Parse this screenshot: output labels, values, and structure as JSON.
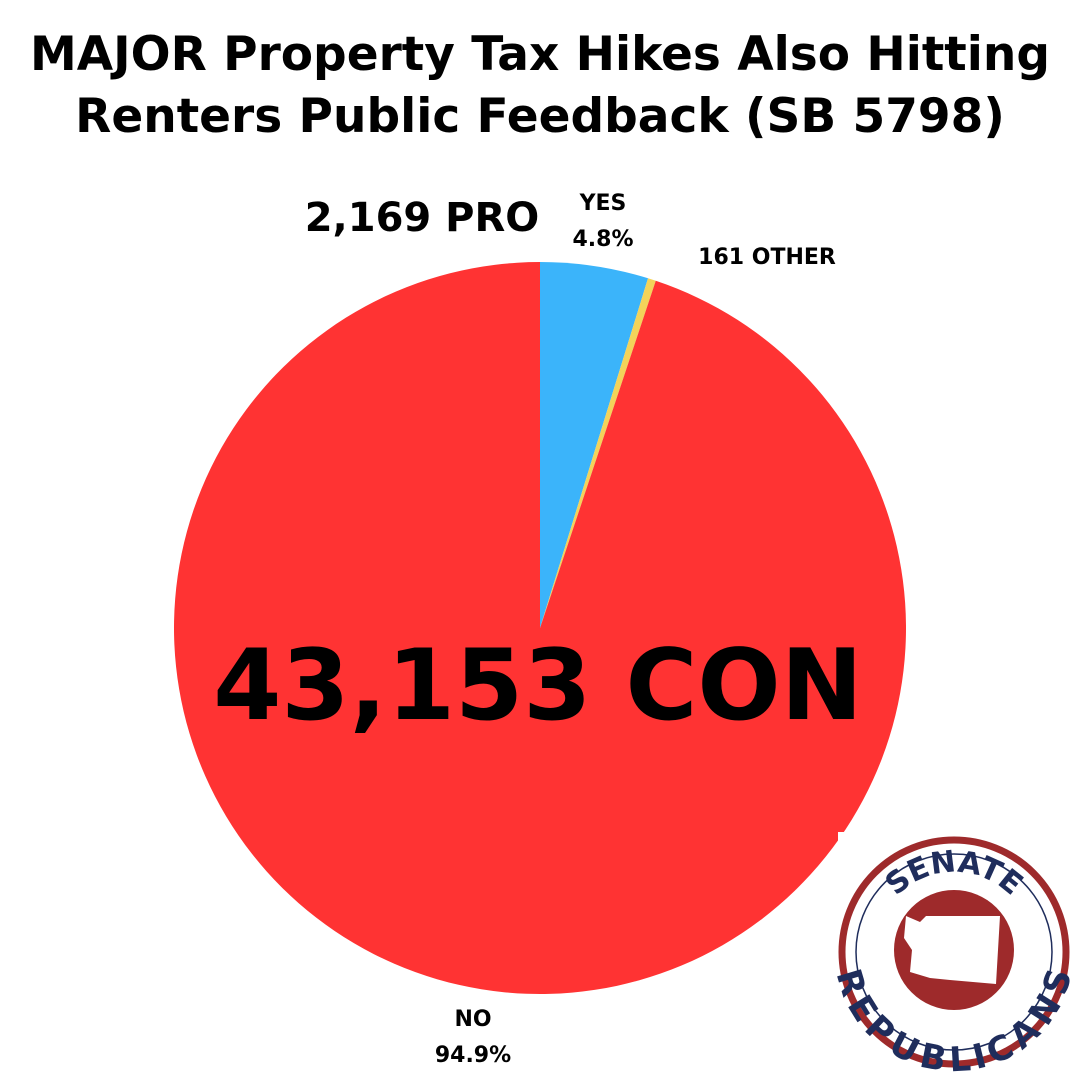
{
  "chart_data": {
    "type": "pie",
    "title": "MAJOR Property Tax Hikes Also Hitting Renters Public Feedback (SB 5798)",
    "categories": [
      "YES",
      null,
      "NO"
    ],
    "values": [
      2169,
      161,
      43153
    ],
    "value_labels": [
      "2,169 PRO",
      "161 OTHER",
      "43,153 CON"
    ],
    "percent_labels": [
      "4.8%",
      null,
      "94.9%"
    ],
    "colors": [
      "#3bb4fa",
      "#f3d35a",
      "#ff3333"
    ]
  },
  "logo": {
    "top": "SENATE",
    "bottom": "REPUBLICANS"
  }
}
